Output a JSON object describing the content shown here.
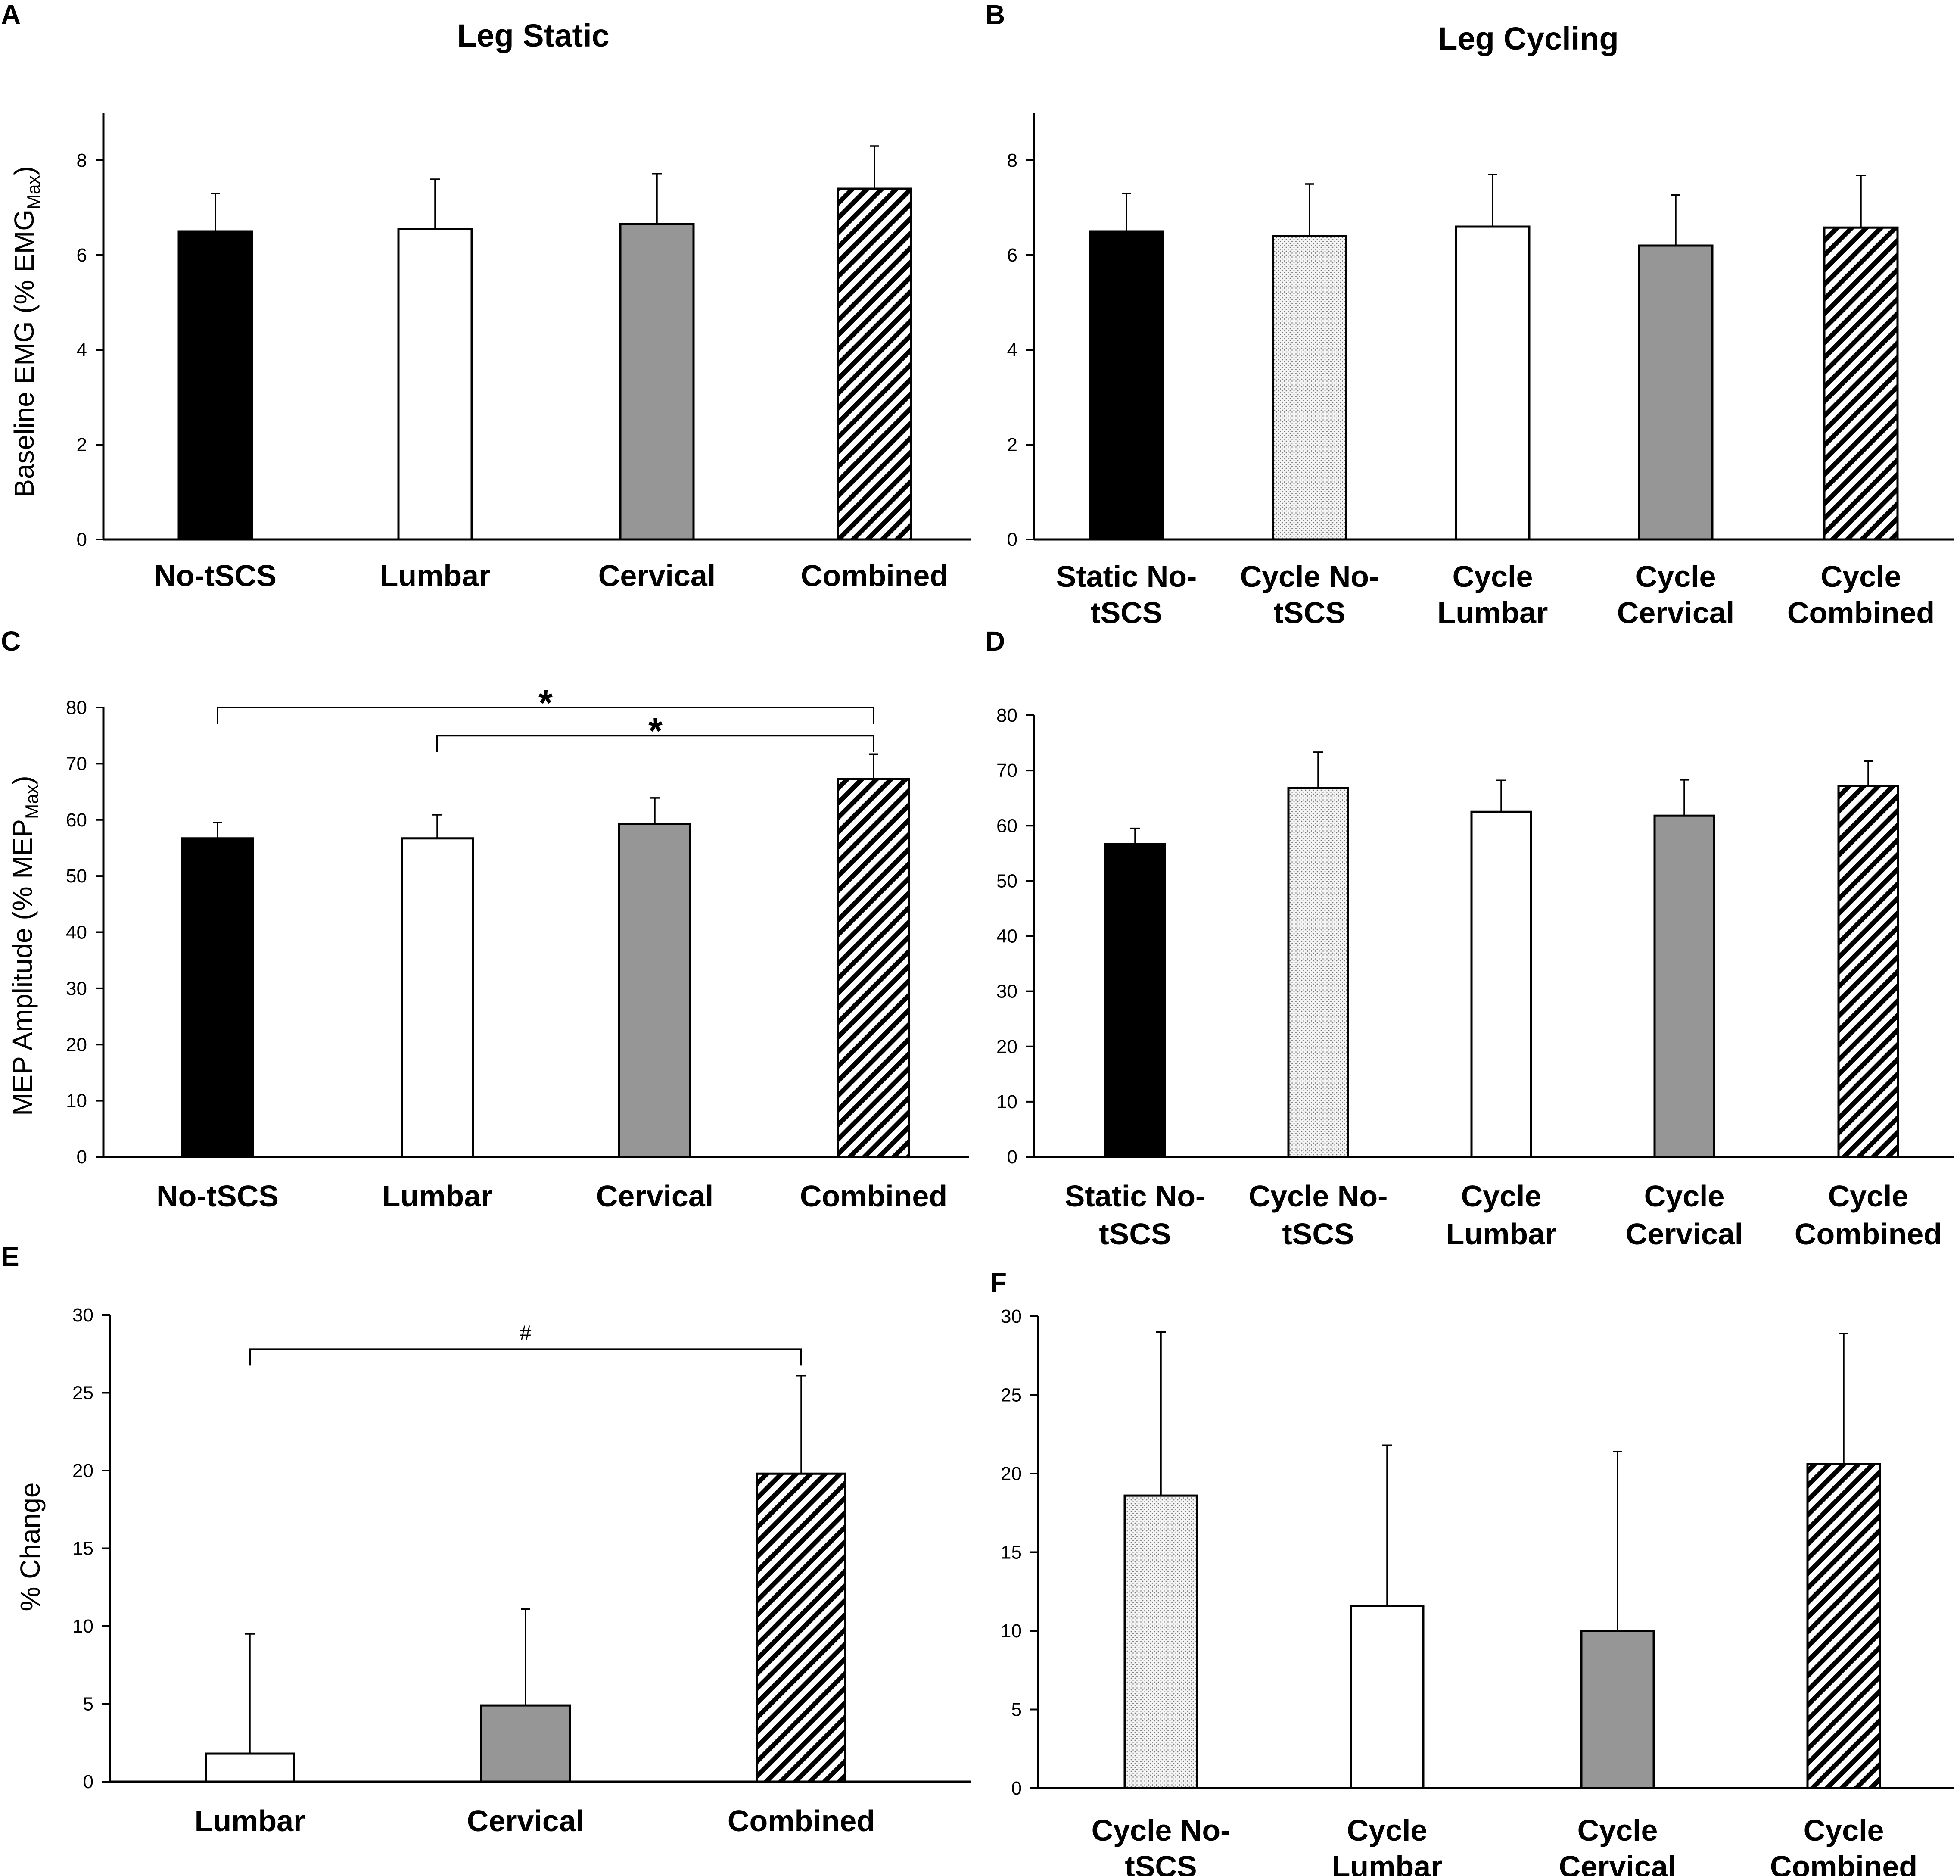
{
  "colors": {
    "black": "#000000",
    "white": "#ffffff",
    "gray": "#969696",
    "dotted_fill": "#ebebeb",
    "hatch": "#000000"
  },
  "chart_data": [
    {
      "panel": "A",
      "type": "bar",
      "title": "Leg Static",
      "ylabel": "Baseline EMG  (% EMG",
      "ylabel_sub": "Max",
      "ylabel_close": ")",
      "ylim": [
        0,
        9
      ],
      "yticks": [
        0,
        2,
        4,
        6,
        8
      ],
      "categories": [
        [
          "No-tSCS"
        ],
        [
          "Lumbar"
        ],
        [
          "Cervical"
        ],
        [
          "Combined"
        ]
      ],
      "values": [
        6.5,
        6.55,
        6.65,
        7.4
      ],
      "errors": [
        0.8,
        1.05,
        1.07,
        0.9
      ],
      "fills": [
        "black",
        "white",
        "gray",
        "hatch"
      ],
      "significance": []
    },
    {
      "panel": "B",
      "type": "bar",
      "title": "Leg Cycling",
      "ylabel": "",
      "ylim": [
        0,
        9
      ],
      "yticks": [
        0,
        2,
        4,
        6,
        8
      ],
      "categories": [
        [
          "Static No-",
          "tSCS"
        ],
        [
          "Cycle No-",
          "tSCS"
        ],
        [
          "Cycle",
          "Lumbar"
        ],
        [
          "Cycle",
          "Cervical"
        ],
        [
          "Cycle",
          "Combined"
        ]
      ],
      "values": [
        6.5,
        6.4,
        6.6,
        6.2,
        6.58
      ],
      "errors": [
        0.8,
        1.1,
        1.1,
        1.07,
        1.1
      ],
      "fills": [
        "black",
        "dotted",
        "white",
        "gray",
        "hatch"
      ],
      "significance": []
    },
    {
      "panel": "C",
      "type": "bar",
      "title": "",
      "ylabel": "MEP Amplitude (% MEP",
      "ylabel_sub": "Max",
      "ylabel_close": ")",
      "ylim": [
        0,
        80
      ],
      "yticks": [
        0,
        10,
        20,
        30,
        40,
        50,
        60,
        70,
        80
      ],
      "categories": [
        [
          "No-tSCS"
        ],
        [
          "Lumbar"
        ],
        [
          "Cervical"
        ],
        [
          "Combined"
        ]
      ],
      "values": [
        56.7,
        56.7,
        59.3,
        67.3
      ],
      "errors": [
        2.8,
        4.2,
        4.6,
        4.4
      ],
      "fills": [
        "black",
        "white",
        "gray",
        "hatch"
      ],
      "significance": [
        {
          "from": 0,
          "to": 3,
          "level": 80,
          "symbol": "*"
        },
        {
          "from": 1,
          "to": 3,
          "level": 75,
          "symbol": "*"
        }
      ]
    },
    {
      "panel": "D",
      "type": "bar",
      "title": "",
      "ylabel": "",
      "ylim": [
        0,
        80
      ],
      "yticks": [
        0,
        10,
        20,
        30,
        40,
        50,
        60,
        70,
        80
      ],
      "categories": [
        [
          "Static No-",
          "tSCS"
        ],
        [
          "Cycle No-",
          "tSCS"
        ],
        [
          "Cycle",
          "Lumbar"
        ],
        [
          "Cycle",
          "Cervical"
        ],
        [
          "Cycle",
          "Combined"
        ]
      ],
      "values": [
        56.7,
        66.8,
        62.5,
        61.8,
        67.2
      ],
      "errors": [
        2.8,
        6.5,
        5.7,
        6.5,
        4.5
      ],
      "fills": [
        "black",
        "dotted",
        "white",
        "gray",
        "hatch"
      ],
      "significance": []
    },
    {
      "panel": "E",
      "type": "bar",
      "title": "",
      "ylabel": "% Change",
      "ylim": [
        0,
        30
      ],
      "yticks": [
        0,
        5,
        10,
        15,
        20,
        25,
        30
      ],
      "categories": [
        [
          "Lumbar"
        ],
        [
          "Cervical"
        ],
        [
          "Combined"
        ]
      ],
      "values": [
        1.8,
        4.9,
        19.8
      ],
      "errors": [
        7.7,
        6.2,
        6.3
      ],
      "fills": [
        "white",
        "gray",
        "hatch"
      ],
      "significance": [
        {
          "from": 0,
          "to": 2,
          "level": 27.8,
          "symbol": "#"
        }
      ]
    },
    {
      "panel": "F",
      "type": "bar",
      "title": "",
      "ylabel": "",
      "ylim": [
        0,
        30
      ],
      "yticks": [
        0,
        5,
        10,
        15,
        20,
        25,
        30
      ],
      "categories": [
        [
          "Cycle  No-",
          "tSCS"
        ],
        [
          "Cycle",
          "Lumbar"
        ],
        [
          "Cycle",
          "Cervical"
        ],
        [
          "Cycle",
          "Combined"
        ]
      ],
      "values": [
        18.6,
        11.6,
        10.0,
        20.6
      ],
      "errors": [
        10.4,
        10.2,
        11.4,
        8.3
      ],
      "fills": [
        "dotted",
        "white",
        "gray",
        "hatch"
      ],
      "significance": []
    }
  ]
}
